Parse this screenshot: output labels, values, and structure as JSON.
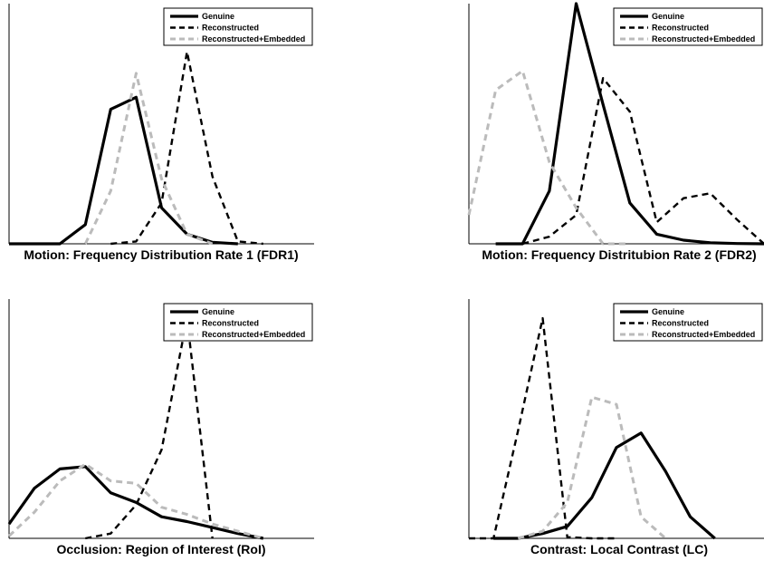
{
  "legend": [
    "Genuine",
    "Reconstructed",
    "Reconstructed+Embedded"
  ],
  "colors": {
    "genuine": "#000000",
    "reconstructed": "#000000",
    "embedded": "#bbbbbb"
  },
  "chart_data": [
    {
      "type": "line",
      "title": "",
      "xlabel": "Motion: Frequency Distribution Rate 1 (FDR1)",
      "ylabel": "",
      "xlim": [
        0,
        12
      ],
      "ylim": [
        0,
        100
      ],
      "legend_position": "top-right",
      "series": [
        {
          "name": "Genuine",
          "style": "solid",
          "x": [
            0,
            1,
            2,
            3,
            4,
            5,
            6,
            7,
            8,
            9
          ],
          "y": [
            0,
            0,
            0,
            8,
            56,
            61,
            15,
            4,
            0.6,
            0
          ]
        },
        {
          "name": "Reconstructed",
          "style": "dashed",
          "x": [
            4,
            5,
            6,
            7,
            8,
            9,
            10
          ],
          "y": [
            0,
            1,
            17,
            80,
            28,
            1,
            0
          ]
        },
        {
          "name": "Reconstructed+Embedded",
          "style": "dashed-gray",
          "x": [
            3,
            4,
            5,
            6,
            7,
            8
          ],
          "y": [
            0,
            22,
            71,
            27,
            4,
            0
          ]
        }
      ]
    },
    {
      "type": "line",
      "title": "",
      "xlabel": "Motion: Frequency Distritubion Rate 2 (FDR2)",
      "ylabel": "",
      "xlim": [
        0,
        11
      ],
      "ylim": [
        0,
        100
      ],
      "legend_position": "top-right",
      "series": [
        {
          "name": "Genuine",
          "style": "solid",
          "x": [
            1,
            2,
            3,
            4,
            5,
            6,
            7,
            8,
            9,
            10,
            11
          ],
          "y": [
            0,
            0,
            22,
            100,
            58,
            17,
            4,
            1.5,
            0.4,
            0.1,
            0
          ]
        },
        {
          "name": "Reconstructed",
          "style": "dashed",
          "x": [
            2,
            3,
            4,
            5,
            6,
            7,
            8,
            9,
            10,
            11
          ],
          "y": [
            0,
            3,
            12,
            69,
            55,
            9,
            19,
            21,
            10,
            0
          ]
        },
        {
          "name": "Reconstructed+Embedded",
          "style": "dashed-gray",
          "x": [
            0,
            1,
            2,
            3,
            4,
            5,
            6
          ],
          "y": [
            12,
            64,
            72,
            34,
            15,
            0,
            0
          ]
        }
      ]
    },
    {
      "type": "line",
      "title": "",
      "xlabel": "Occlusion: Region of Interest (RoI)",
      "ylabel": "",
      "xlim": [
        0,
        12
      ],
      "ylim": [
        0,
        100
      ],
      "legend_position": "top-right",
      "series": [
        {
          "name": "Genuine",
          "style": "solid",
          "x": [
            0,
            1,
            2,
            3,
            4,
            5,
            6,
            7,
            8,
            9,
            10
          ],
          "y": [
            6,
            21,
            29,
            30,
            19,
            15,
            9,
            7,
            4.5,
            2,
            0
          ]
        },
        {
          "name": "Reconstructed",
          "style": "dashed",
          "x": [
            3,
            4,
            5,
            6,
            7,
            8
          ],
          "y": [
            0,
            2,
            14,
            37,
            92,
            0
          ]
        },
        {
          "name": "Reconstructed+Embedded",
          "style": "dashed-gray",
          "x": [
            0,
            1,
            2,
            3,
            4,
            5,
            6,
            7,
            8,
            9,
            10
          ],
          "y": [
            1,
            11,
            24,
            31,
            24,
            23,
            13,
            10,
            6,
            3,
            0
          ]
        }
      ]
    },
    {
      "type": "line",
      "title": "",
      "xlabel": "Contrast: Local Contrast (LC)",
      "ylabel": "",
      "xlim": [
        0,
        12
      ],
      "ylim": [
        0,
        100
      ],
      "legend_position": "top-right",
      "series": [
        {
          "name": "Genuine",
          "style": "solid",
          "x": [
            1,
            2,
            3,
            4,
            5,
            6,
            7,
            8,
            9,
            10
          ],
          "y": [
            0,
            0,
            2,
            5,
            17,
            38,
            44,
            28,
            9,
            0
          ]
        },
        {
          "name": "Reconstructed",
          "style": "dashed",
          "x": [
            0,
            1,
            2,
            3,
            4,
            5,
            6
          ],
          "y": [
            0,
            0,
            45,
            92,
            0.5,
            0,
            0
          ]
        },
        {
          "name": "Reconstructed+Embedded",
          "style": "dashed-gray",
          "x": [
            2,
            3,
            4,
            5,
            6,
            7,
            8
          ],
          "y": [
            0,
            3,
            15,
            59,
            56,
            9,
            0
          ]
        }
      ]
    }
  ]
}
